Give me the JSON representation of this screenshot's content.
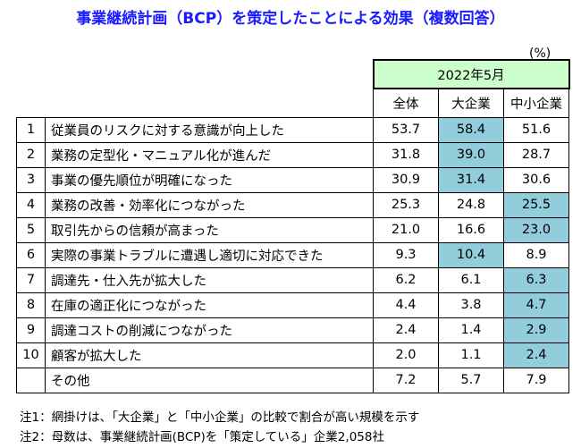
{
  "title": "事業継続計画（BCP）を策定したことによる効果（複数回答）",
  "unit": "(%)",
  "chart_data": {
    "type": "table",
    "period": "2022年5月",
    "columns": [
      "全体",
      "大企業",
      "中小企業"
    ],
    "rows": [
      {
        "rank": "1",
        "label": "従業員のリスクに対する意識が向上した",
        "values": [
          "53.7",
          "58.4",
          "51.6"
        ],
        "highlight": 1
      },
      {
        "rank": "2",
        "label": "業務の定型化・マニュアル化が進んだ",
        "values": [
          "31.8",
          "39.0",
          "28.7"
        ],
        "highlight": 1
      },
      {
        "rank": "3",
        "label": "事業の優先順位が明確になった",
        "values": [
          "30.9",
          "31.4",
          "30.6"
        ],
        "highlight": 1
      },
      {
        "rank": "4",
        "label": "業務の改善・効率化につながった",
        "values": [
          "25.3",
          "24.8",
          "25.5"
        ],
        "highlight": 2
      },
      {
        "rank": "5",
        "label": "取引先からの信頼が高まった",
        "values": [
          "21.0",
          "16.6",
          "23.0"
        ],
        "highlight": 2
      },
      {
        "rank": "6",
        "label": "実際の事業トラブルに遭遇し適切に対応できた",
        "values": [
          "9.3",
          "10.4",
          "8.9"
        ],
        "highlight": 1
      },
      {
        "rank": "7",
        "label": "調達先・仕入先が拡大した",
        "values": [
          "6.2",
          "6.1",
          "6.3"
        ],
        "highlight": 2
      },
      {
        "rank": "8",
        "label": "在庫の適正化につながった",
        "values": [
          "4.4",
          "3.8",
          "4.7"
        ],
        "highlight": 2
      },
      {
        "rank": "9",
        "label": "調達コストの削減につながった",
        "values": [
          "2.4",
          "1.4",
          "2.9"
        ],
        "highlight": 2
      },
      {
        "rank": "10",
        "label": "顧客が拡大した",
        "values": [
          "2.0",
          "1.1",
          "2.4"
        ],
        "highlight": 2
      },
      {
        "rank": "",
        "label": "その他",
        "values": [
          "7.2",
          "5.7",
          "7.9"
        ],
        "highlight": -1
      }
    ],
    "highlight_color": "#92cddc",
    "header_color": "#ccffcc"
  },
  "notes": [
    "注1：網掛けは、「大企業」と「中小企業」の比較で割合が高い規模を示す",
    "注2：母数は、事業継続計画(BCP)を「策定している」企業2,058社"
  ]
}
